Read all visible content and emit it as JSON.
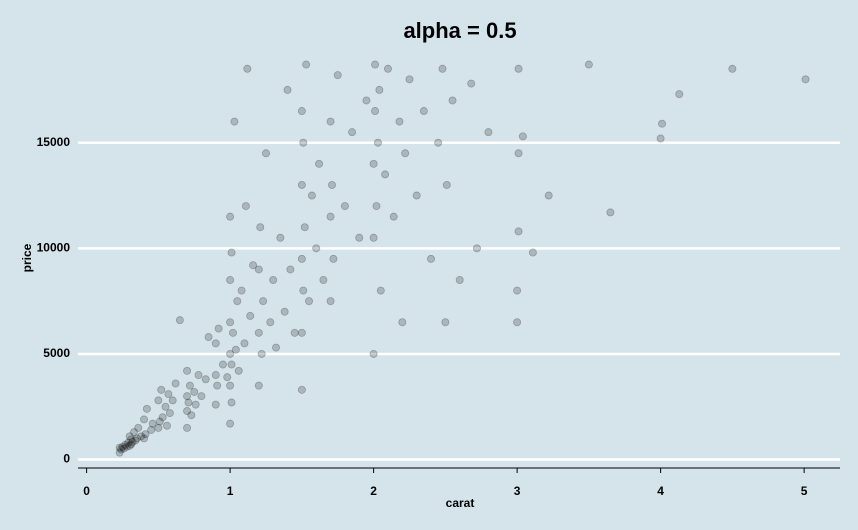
{
  "chart_data": {
    "type": "scatter",
    "title": "alpha = 0.5",
    "x_label": "carat",
    "y_label": "price",
    "xlim": [
      -0.06,
      5.25
    ],
    "ylim": [
      -400,
      19200
    ],
    "xticks": [
      0,
      1,
      2,
      3,
      4,
      5
    ],
    "yticks": [
      0,
      5000,
      10000,
      15000
    ],
    "grid": true,
    "series": [
      {
        "color": "#000000",
        "x": [
          0.23,
          0.23,
          0.24,
          0.25,
          0.26,
          0.27,
          0.28,
          0.29,
          0.3,
          0.3,
          0.31,
          0.31,
          0.32,
          0.33,
          0.34,
          0.35,
          0.36,
          0.38,
          0.4,
          0.4,
          0.41,
          0.42,
          0.45,
          0.46,
          0.5,
          0.5,
          0.51,
          0.52,
          0.53,
          0.55,
          0.56,
          0.57,
          0.58,
          0.6,
          0.62,
          0.65,
          0.7,
          0.7,
          0.7,
          0.7,
          0.71,
          0.72,
          0.73,
          0.75,
          0.76,
          0.78,
          0.8,
          0.83,
          0.85,
          0.9,
          0.9,
          0.9,
          0.91,
          0.92,
          0.95,
          0.98,
          1.0,
          1.0,
          1.0,
          1.0,
          1.0,
          1.0,
          1.01,
          1.01,
          1.01,
          1.02,
          1.03,
          1.04,
          1.05,
          1.06,
          1.08,
          1.1,
          1.11,
          1.12,
          1.14,
          1.16,
          1.2,
          1.2,
          1.2,
          1.21,
          1.22,
          1.23,
          1.25,
          1.28,
          1.3,
          1.32,
          1.35,
          1.38,
          1.4,
          1.42,
          1.45,
          1.5,
          1.5,
          1.5,
          1.5,
          1.5,
          1.51,
          1.51,
          1.52,
          1.53,
          1.55,
          1.57,
          1.6,
          1.62,
          1.65,
          1.7,
          1.7,
          1.7,
          1.71,
          1.72,
          1.75,
          1.8,
          1.85,
          1.9,
          1.95,
          2.0,
          2.0,
          2.0,
          2.01,
          2.01,
          2.02,
          2.03,
          2.04,
          2.05,
          2.08,
          2.1,
          2.14,
          2.18,
          2.2,
          2.22,
          2.25,
          2.3,
          2.35,
          2.4,
          2.45,
          2.48,
          2.5,
          2.51,
          2.55,
          2.6,
          2.68,
          2.72,
          2.8,
          3.0,
          3.0,
          3.01,
          3.01,
          3.01,
          3.04,
          3.11,
          3.22,
          3.5,
          3.65,
          4.0,
          4.01,
          4.13,
          4.5,
          5.01
        ],
        "values": [
          326,
          560,
          480,
          600,
          520,
          700,
          610,
          800,
          650,
          1100,
          720,
          950,
          830,
          1300,
          900,
          1000,
          1500,
          1100,
          1000,
          1900,
          1200,
          2400,
          1400,
          1700,
          1500,
          2800,
          1800,
          3300,
          2000,
          2500,
          1600,
          3100,
          2200,
          2800,
          3600,
          6600,
          1500,
          2300,
          3000,
          4200,
          2700,
          3500,
          2100,
          3200,
          2600,
          4000,
          3000,
          3800,
          5800,
          2600,
          4000,
          5500,
          3500,
          6200,
          4500,
          3900,
          1700,
          3500,
          5000,
          6500,
          8500,
          11500,
          2700,
          4500,
          9800,
          6000,
          16000,
          5200,
          7500,
          4200,
          8000,
          5500,
          12000,
          18500,
          6800,
          9200,
          3500,
          6000,
          9000,
          11000,
          5000,
          7500,
          14500,
          6500,
          8500,
          5300,
          10500,
          7000,
          17500,
          9000,
          6000,
          3300,
          6000,
          9500,
          13000,
          16500,
          8000,
          15000,
          11000,
          18700,
          7500,
          12500,
          10000,
          14000,
          8500,
          7500,
          11500,
          16000,
          13000,
          9500,
          18200,
          12000,
          15500,
          10500,
          17000,
          5000,
          10500,
          14000,
          16500,
          18700,
          12000,
          15000,
          17500,
          8000,
          13500,
          18500,
          11500,
          16000,
          6500,
          14500,
          18000,
          12500,
          16500,
          9500,
          15000,
          18500,
          6500,
          13000,
          17000,
          8500,
          17800,
          10000,
          15500,
          6500,
          8000,
          10800,
          14500,
          18500,
          15300,
          9800,
          12500,
          18700,
          11700,
          15200,
          15900,
          17300,
          18500,
          18000
        ]
      }
    ]
  }
}
